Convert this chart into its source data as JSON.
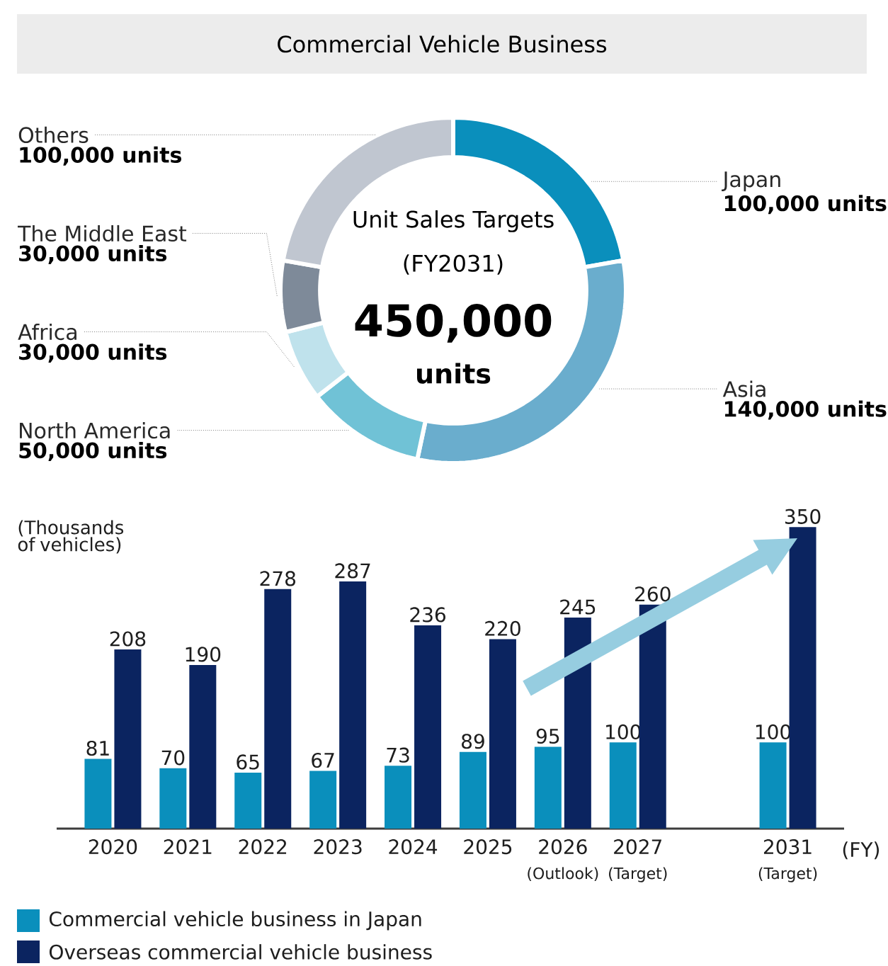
{
  "chart_data": [
    {
      "type": "donut",
      "title": "Commercial Vehicle Business",
      "categories": [
        "Japan",
        "Asia",
        "North America",
        "Africa",
        "The Middle East",
        "Others"
      ],
      "values": [
        100000,
        140000,
        50000,
        30000,
        30000,
        100000
      ],
      "value_labels": [
        "100,000 units",
        "140,000 units",
        "50,000 units",
        "30,000 units",
        "30,000 units",
        "100,000 units"
      ],
      "colors": [
        "#0a8fbc",
        "#6aadcd",
        "#70c2d6",
        "#bfe2ec",
        "#7e8a99",
        "#c0c6d0"
      ],
      "annotations": [
        "Unit Sales Targets",
        "(FY2031)",
        "450,000",
        "units"
      ]
    },
    {
      "type": "bar",
      "categories": [
        "2020",
        "2021",
        "2022",
        "2023",
        "2024",
        "2025",
        "2026",
        "2027",
        null,
        "2031"
      ],
      "series": [
        {
          "name": "Commercial vehicle business in Japan",
          "color": "#0a8fbc",
          "values": [
            81,
            70,
            65,
            67,
            73,
            89,
            95,
            100,
            null,
            100
          ]
        },
        {
          "name": "Overseas commercial vehicle business",
          "color": "#0b2460",
          "values": [
            208,
            190,
            278,
            287,
            236,
            220,
            245,
            260,
            null,
            350
          ]
        }
      ],
      "data_labels": true,
      "xlabel": "(FY)",
      "ylabel": "(Thousands of vehicles)",
      "legend": "bottom",
      "annotations": [
        "(Outlook)",
        "(Target)",
        "(Target)"
      ]
    }
  ]
}
